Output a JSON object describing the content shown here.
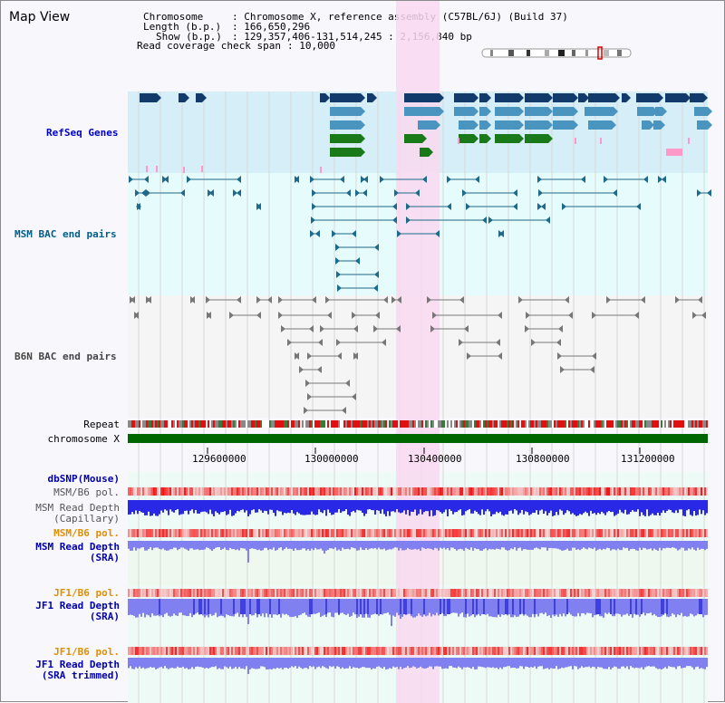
{
  "viewer": {
    "title": "Map View"
  },
  "info": {
    "chromosome_label": "Chromosome",
    "chromosome_value": ": Chromosome X, reference assembly (C57BL/6J) (Build 37)",
    "length_label": "Length (b.p.)",
    "length_value": ": 166,650,296",
    "show_label": "Show (b.p.)",
    "show_value": ": 129,357,406-131,514,245 : 2,156,840 bp",
    "coverage_label": "Read coverage check span",
    "coverage_value": ": 10,000"
  },
  "tracks": {
    "refseq": {
      "label": "RefSeq Genes",
      "color": "#0000cc"
    },
    "msm_bac": {
      "label": "MSM BAC end pairs",
      "color": "#005f8a"
    },
    "b6n_bac": {
      "label": "B6N BAC end pairs",
      "color": "#444444"
    },
    "repeat": {
      "label": "Repeat",
      "color": "#000000"
    },
    "chromosome": {
      "label": "chromosome X",
      "color": "#000000"
    },
    "dbsnp": {
      "label": "dbSNP(Mouse)",
      "color": "#0000aa"
    },
    "msm_b6_pol_1": {
      "label": "MSM/B6 pol.",
      "color": "#555555"
    },
    "msm_depth_cap_1": {
      "label": "MSM Read Depth",
      "color": "#555555"
    },
    "msm_depth_cap_2": {
      "label": "(Capillary)",
      "color": "#555555"
    },
    "msm_b6_pol_2": {
      "label": "MSM/B6 pol.",
      "color": "#e09000"
    },
    "msm_depth_sra_1": {
      "label": "MSM Read Depth",
      "color": "#0000aa"
    },
    "msm_depth_sra_2": {
      "label": "(SRA)",
      "color": "#0000aa"
    },
    "jf1_b6_pol_1": {
      "label": "JF1/B6 pol.",
      "color": "#e09000"
    },
    "jf1_depth_sra_1": {
      "label": "JF1 Read Depth",
      "color": "#0000aa"
    },
    "jf1_depth_sra_2": {
      "label": "(SRA)",
      "color": "#0000aa"
    },
    "jf1_b6_pol_2": {
      "label": "JF1/B6 pol.",
      "color": "#e09000"
    },
    "jf1_depth_trim_1": {
      "label": "JF1 Read Depth",
      "color": "#0000aa"
    },
    "jf1_depth_trim_2": {
      "label": "(SRA trimmed)",
      "color": "#0000aa"
    }
  },
  "axis": {
    "ticks": [
      "129600000",
      "130000000",
      "130400000",
      "130800000",
      "131200000"
    ]
  },
  "colors": {
    "refseq_bg": "#d6eef8",
    "msm_bg": "#e6fbfb",
    "highlight": "#f9d8f0",
    "gene_dark": "#123a6b",
    "gene_mid": "#4a94c0",
    "gene_green": "#1a7a1a",
    "gene_pink": "#ff99cc",
    "chrom_green": "#006600",
    "depth_blue": "#2828e6",
    "depth_light": "#8080f0"
  }
}
